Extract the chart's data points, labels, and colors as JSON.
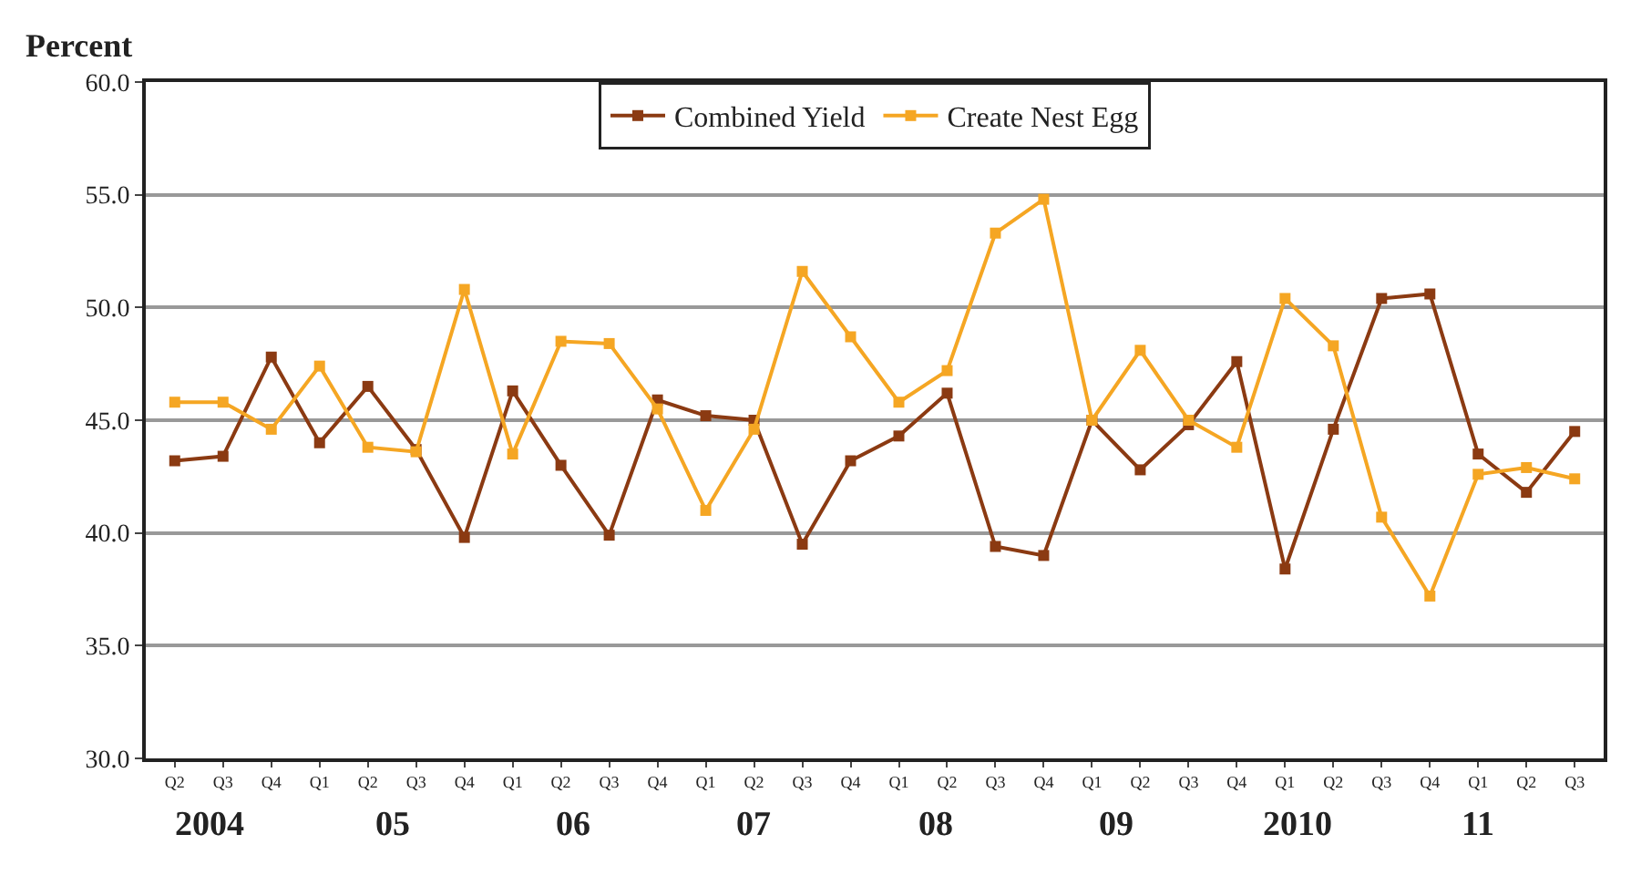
{
  "chart_data": {
    "type": "line",
    "ylabel": "Percent",
    "categories": [
      "Q2",
      "Q3",
      "Q4",
      "Q1",
      "Q2",
      "Q3",
      "Q4",
      "Q1",
      "Q2",
      "Q3",
      "Q4",
      "Q1",
      "Q2",
      "Q3",
      "Q4",
      "Q1",
      "Q2",
      "Q3",
      "Q4",
      "Q1",
      "Q2",
      "Q3",
      "Q4",
      "Q1",
      "Q2",
      "Q3",
      "Q4",
      "Q1",
      "Q2",
      "Q3"
    ],
    "series": [
      {
        "name": "Combined Yield",
        "color": "#8b3a12",
        "values": [
          43.2,
          43.4,
          47.8,
          44.0,
          46.5,
          43.7,
          39.8,
          46.3,
          43.0,
          39.9,
          45.9,
          45.2,
          45.0,
          39.5,
          43.2,
          44.3,
          46.2,
          39.4,
          39.0,
          45.0,
          42.8,
          44.8,
          47.6,
          38.4,
          44.6,
          50.4,
          50.6,
          43.5,
          41.8,
          44.5
        ]
      },
      {
        "name": "Create Nest Egg",
        "color": "#f5a623",
        "values": [
          45.8,
          45.8,
          44.6,
          47.4,
          43.8,
          43.6,
          50.8,
          43.5,
          48.5,
          48.4,
          45.5,
          41.0,
          44.6,
          51.6,
          48.7,
          45.8,
          47.2,
          53.3,
          54.8,
          45.0,
          48.1,
          45.0,
          43.8,
          50.4,
          48.3,
          40.7,
          37.2,
          42.6,
          42.9,
          42.4
        ]
      }
    ],
    "ylim": [
      30,
      60
    ],
    "yticks": [
      {
        "value": 30,
        "label": "30.0"
      },
      {
        "value": 35,
        "label": "35.0"
      },
      {
        "value": 40,
        "label": "40.0"
      },
      {
        "value": 45,
        "label": "45.0"
      },
      {
        "value": 50,
        "label": "50.0"
      },
      {
        "value": 55,
        "label": "55.0"
      },
      {
        "value": 60,
        "label": "60.0"
      }
    ],
    "annotations": [
      "2004",
      "05",
      "06",
      "07",
      "08",
      "09",
      "2010",
      "11"
    ],
    "grid": "y",
    "legend": "top",
    "marker": "square",
    "line_style": "solid"
  }
}
